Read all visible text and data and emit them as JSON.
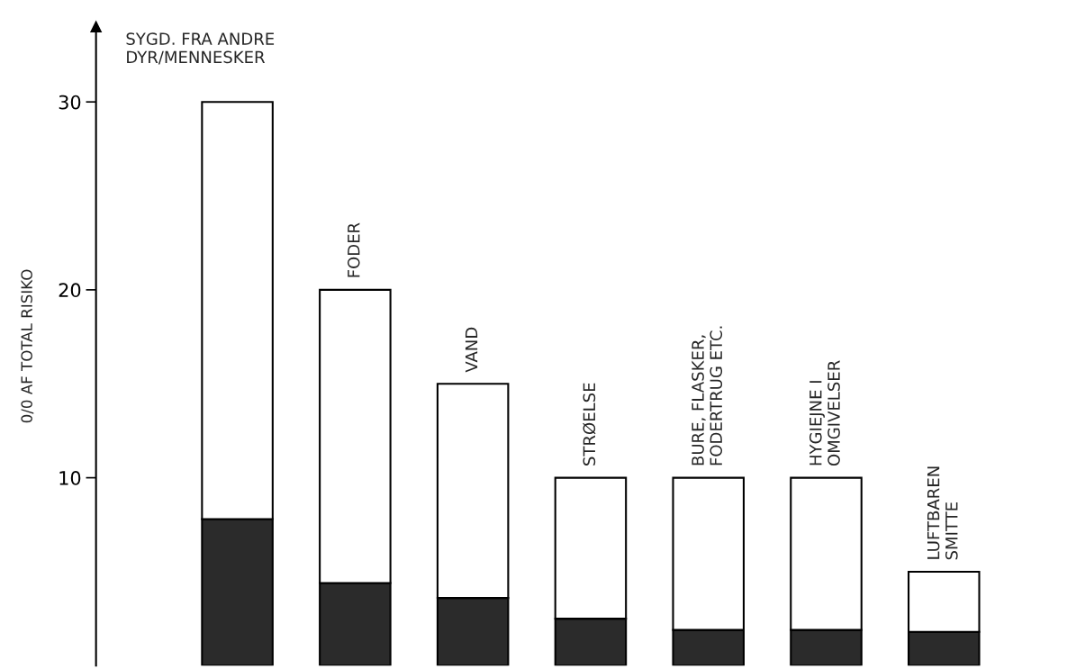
{
  "chart_data": {
    "type": "bar",
    "stacked": true,
    "ylabel": "0/0 AF TOTAL RISIKO",
    "categories": [
      "SYGD. FRA ANDRE\nDYR/MENNESKER",
      "FODER",
      "VAND",
      "STRØELSE",
      "BURE, FLASKER,\nFODERTRUG ETC.",
      "HYGIEJNE I\nOMGIVELSER",
      "LUFTBAREN\nSMITTE"
    ],
    "series": [
      {
        "color": "#2b2b2b",
        "values": [
          7.8,
          4.4,
          3.6,
          2.5,
          1.9,
          1.9,
          1.8
        ]
      },
      {
        "color": "#ffffff",
        "values": [
          22.2,
          15.6,
          11.4,
          7.5,
          8.1,
          8.1,
          3.2
        ]
      }
    ],
    "ylim": [
      0,
      34
    ],
    "yticks": [
      10,
      20,
      30
    ],
    "grid": false,
    "legend": false
  }
}
